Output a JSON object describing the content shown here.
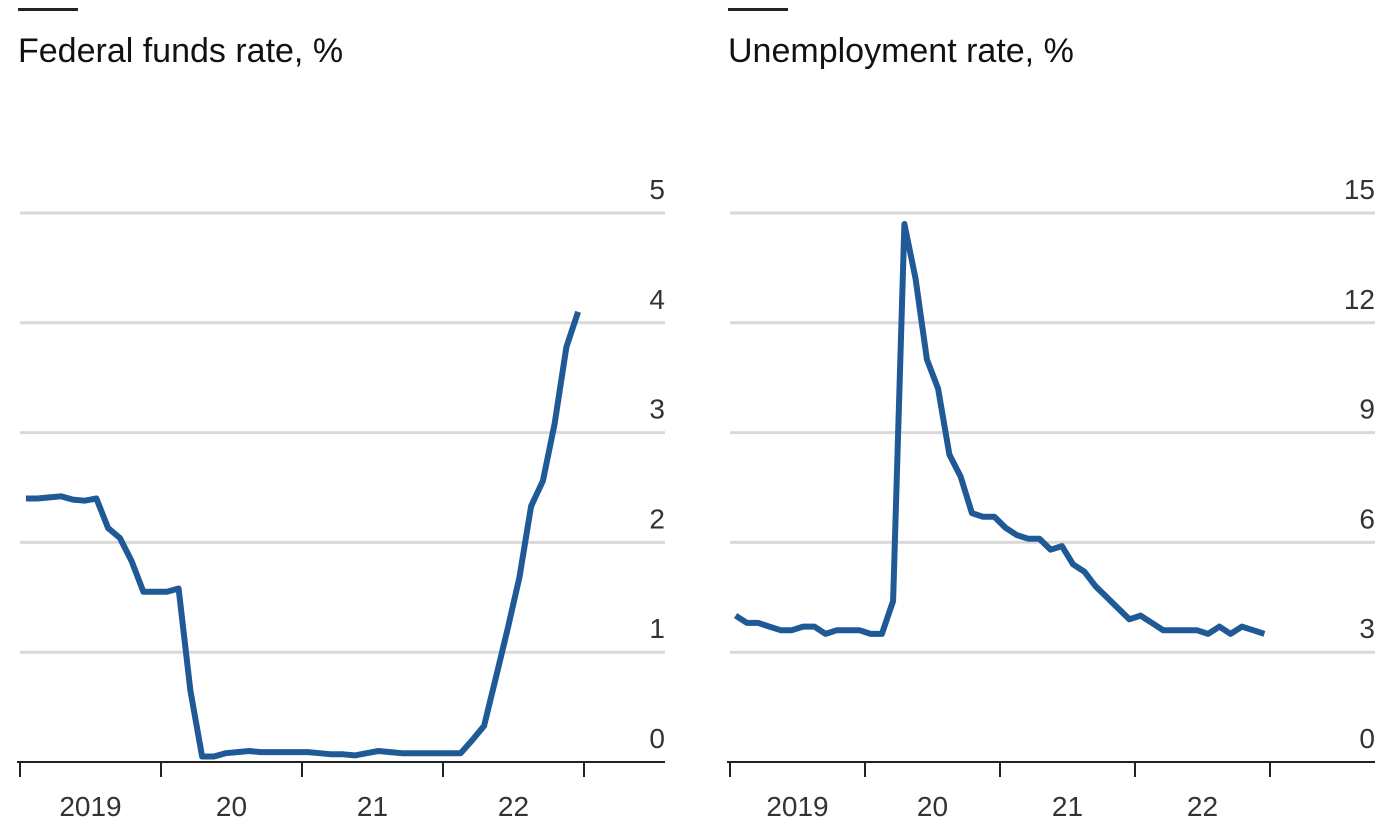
{
  "chart_data": [
    {
      "type": "line",
      "title": "Federal funds rate, %",
      "color": "#1f5a96",
      "grid": true,
      "ylim": [
        0,
        5
      ],
      "yticks": [
        0,
        1,
        2,
        3,
        4,
        5
      ],
      "x_labels": [
        "2019",
        "20",
        "21",
        "22"
      ],
      "values": [
        2.4,
        2.4,
        2.41,
        2.42,
        2.39,
        2.38,
        2.4,
        2.13,
        2.04,
        1.83,
        1.55,
        1.55,
        1.55,
        1.58,
        0.65,
        0.05,
        0.05,
        0.08,
        0.09,
        0.1,
        0.09,
        0.09,
        0.09,
        0.09,
        0.09,
        0.08,
        0.07,
        0.07,
        0.06,
        0.08,
        0.1,
        0.09,
        0.08,
        0.08,
        0.08,
        0.08,
        0.08,
        0.08,
        0.2,
        0.33,
        0.77,
        1.21,
        1.68,
        2.33,
        2.56,
        3.08,
        3.78,
        4.1
      ]
    },
    {
      "type": "line",
      "title": "Unemployment rate, %",
      "color": "#1f5a96",
      "grid": true,
      "ylim": [
        0,
        15
      ],
      "yticks": [
        0,
        3,
        6,
        9,
        12,
        15
      ],
      "x_labels": [
        "2019",
        "20",
        "21",
        "22"
      ],
      "values": [
        4.0,
        3.8,
        3.8,
        3.7,
        3.6,
        3.6,
        3.7,
        3.7,
        3.5,
        3.6,
        3.6,
        3.6,
        3.5,
        3.5,
        4.4,
        14.7,
        13.2,
        11.0,
        10.2,
        8.4,
        7.8,
        6.8,
        6.7,
        6.7,
        6.4,
        6.2,
        6.1,
        6.1,
        5.8,
        5.9,
        5.4,
        5.2,
        4.8,
        4.5,
        4.2,
        3.9,
        4.0,
        3.8,
        3.6,
        3.6,
        3.6,
        3.6,
        3.5,
        3.7,
        3.5,
        3.7,
        3.6,
        3.5
      ]
    }
  ]
}
